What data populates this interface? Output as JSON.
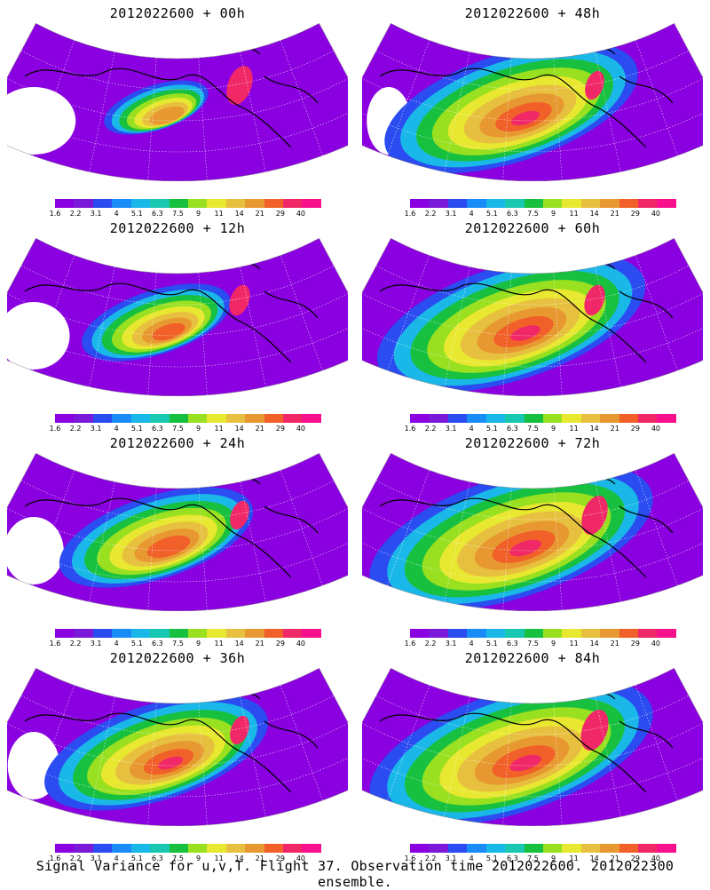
{
  "panels": [
    {
      "title": "2012022600 + 00h",
      "spread": 0.35,
      "hot": 0.95
    },
    {
      "title": "2012022600 + 48h",
      "spread": 0.85,
      "hot": 0.7
    },
    {
      "title": "2012022600 + 12h",
      "spread": 0.5,
      "hot": 0.75
    },
    {
      "title": "2012022600 + 60h",
      "spread": 0.9,
      "hot": 0.75
    },
    {
      "title": "2012022600 + 24h",
      "spread": 0.65,
      "hot": 0.7
    },
    {
      "title": "2012022600 + 72h",
      "spread": 0.95,
      "hot": 0.95
    },
    {
      "title": "2012022600 + 36h",
      "spread": 0.75,
      "hot": 0.7
    },
    {
      "title": "2012022600 + 84h",
      "spread": 0.95,
      "hot": 1.0
    }
  ],
  "colorbar": {
    "labels": [
      "1.6",
      "2.2",
      "3.1",
      "4",
      "5.1",
      "6.3",
      "7.5",
      "9",
      "11",
      "14",
      "21",
      "29",
      "40"
    ],
    "colors": [
      "#8a00e0",
      "#7a1ad8",
      "#2a4cf0",
      "#1a8cf8",
      "#1ab8e8",
      "#18c8b0",
      "#18c040",
      "#98e020",
      "#e8e830",
      "#e8c040",
      "#e89830",
      "#f06028",
      "#f02868",
      "#f8108c"
    ]
  },
  "caption": "Signal Variance for u,v,T. Flight 37. Observation time 2012022600. 2012022300 ensemble."
}
